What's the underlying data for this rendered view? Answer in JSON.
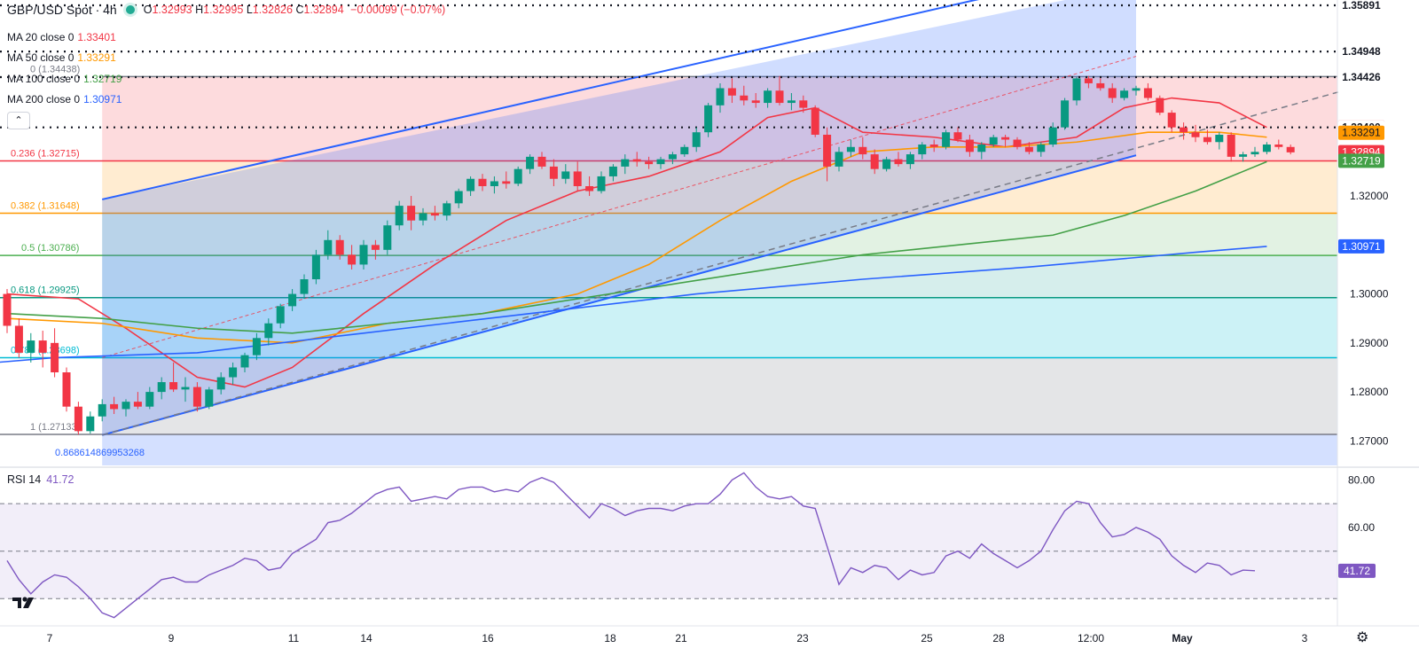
{
  "header": {
    "symbol": "GBP/USD Spot · 4h",
    "ohlc": {
      "o_label": "O",
      "o": "1.32993",
      "h_label": "H",
      "h": "1.32995",
      "l_label": "L",
      "l": "1.32826",
      "c_label": "C",
      "c": "1.32894",
      "change": "−0.00099 (−0.07%)"
    }
  },
  "legends": [
    {
      "label": "MA 20 close 0",
      "value": "1.33401",
      "color": "#f23645"
    },
    {
      "label": "MA 50 close 0",
      "value": "1.33291",
      "color": "#ff9800"
    },
    {
      "label": "MA 100 close 0",
      "value": "1.32719",
      "color": "#43a047"
    },
    {
      "label": "MA 200 close 0",
      "value": "1.30971",
      "color": "#2962ff"
    }
  ],
  "rsi": {
    "label": "RSI 14",
    "value": "41.72"
  },
  "chart_data": [
    {
      "type": "candlestick",
      "title": "GBP/USD Spot · 4h",
      "ylim": [
        1.265,
        1.36
      ],
      "y_ticks": [
        "1.27000",
        "1.28000",
        "1.29000",
        "1.30000",
        "1.32000"
      ],
      "x_ticks": [
        "7",
        "9",
        "11",
        "14",
        "16",
        "18",
        "21",
        "23",
        "25",
        "28",
        "12:00",
        "May",
        "3"
      ],
      "fib_levels": [
        {
          "label": "0 (1.34438)",
          "value": 1.34438
        },
        {
          "label": "0.236 (1.32715)",
          "value": 1.32715
        },
        {
          "label": "0.382 (1.31648)",
          "value": 1.31648
        },
        {
          "label": "0.5 (1.30786)",
          "value": 1.30786
        },
        {
          "label": "0.618 (1.29925)",
          "value": 1.29925
        },
        {
          "label": "0.786 (1.28698)",
          "value": 1.28698
        },
        {
          "label": "1 (1.27133)",
          "value": 1.27133
        }
      ],
      "fib_extra_label": "0.868614869953268",
      "horizontal_lines": [
        1.35891,
        1.34948,
        1.34426,
        1.334
      ],
      "price_labels": [
        {
          "text": "1.35891",
          "value": 1.35891,
          "bg": "#ffffff",
          "fg": "#131722"
        },
        {
          "text": "1.34948",
          "value": 1.34948,
          "bg": "#ffffff",
          "fg": "#131722"
        },
        {
          "text": "1.34426",
          "value": 1.34426,
          "bg": "#ffffff",
          "fg": "#131722"
        },
        {
          "text": "1.33401",
          "value": 1.33401,
          "bg": "#f23645",
          "fg": "#ffffff"
        },
        {
          "text": "1.33400",
          "value": 1.334,
          "bg": "#ffffff",
          "fg": "#131722"
        },
        {
          "text": "1.33291",
          "value": 1.33291,
          "bg": "#ff9800",
          "fg": "#131722"
        },
        {
          "text": "1.32894",
          "value": 1.32894,
          "bg": "#f23645",
          "fg": "#ffffff"
        },
        {
          "text": "1.32719",
          "value": 1.32719,
          "bg": "#43a047",
          "fg": "#ffffff"
        },
        {
          "text": "1.30971",
          "value": 1.30971,
          "bg": "#2962ff",
          "fg": "#ffffff"
        }
      ],
      "candles": [
        [
          1.3,
          1.301,
          1.292,
          1.2935
        ],
        [
          1.2935,
          1.295,
          1.287,
          1.288
        ],
        [
          1.288,
          1.292,
          1.286,
          1.2905
        ],
        [
          1.2905,
          1.2925,
          1.285,
          1.288
        ],
        [
          1.29,
          1.293,
          1.283,
          1.284
        ],
        [
          1.284,
          1.285,
          1.276,
          1.277
        ],
        [
          1.277,
          1.278,
          1.2713,
          1.272
        ],
        [
          1.272,
          1.276,
          1.2715,
          1.275
        ],
        [
          1.275,
          1.2785,
          1.274,
          1.2775
        ],
        [
          1.2775,
          1.279,
          1.2755,
          1.2765
        ],
        [
          1.2765,
          1.2785,
          1.275,
          1.278
        ],
        [
          1.278,
          1.28,
          1.2765,
          1.277
        ],
        [
          1.277,
          1.281,
          1.2765,
          1.28
        ],
        [
          1.28,
          1.283,
          1.2785,
          1.282
        ],
        [
          1.282,
          1.286,
          1.28,
          1.2805
        ],
        [
          1.2805,
          1.283,
          1.278,
          1.281
        ],
        [
          1.281,
          1.282,
          1.276,
          1.277
        ],
        [
          1.277,
          1.281,
          1.2765,
          1.2805
        ],
        [
          1.2805,
          1.284,
          1.2795,
          1.283
        ],
        [
          1.283,
          1.286,
          1.2815,
          1.285
        ],
        [
          1.285,
          1.288,
          1.284,
          1.2875
        ],
        [
          1.2875,
          1.292,
          1.2865,
          1.291
        ],
        [
          1.291,
          1.295,
          1.2895,
          1.294
        ],
        [
          1.294,
          1.298,
          1.293,
          1.2975
        ],
        [
          1.2975,
          1.301,
          1.2965,
          1.3
        ],
        [
          1.3,
          1.304,
          1.299,
          1.303
        ],
        [
          1.303,
          1.309,
          1.302,
          1.308
        ],
        [
          1.308,
          1.313,
          1.307,
          1.311
        ],
        [
          1.311,
          1.312,
          1.307,
          1.308
        ],
        [
          1.308,
          1.31,
          1.305,
          1.306
        ],
        [
          1.306,
          1.311,
          1.305,
          1.31
        ],
        [
          1.31,
          1.311,
          1.307,
          1.309
        ],
        [
          1.309,
          1.315,
          1.308,
          1.314
        ],
        [
          1.314,
          1.319,
          1.313,
          1.318
        ],
        [
          1.318,
          1.32,
          1.313,
          1.315
        ],
        [
          1.315,
          1.3175,
          1.314,
          1.3165
        ],
        [
          1.3165,
          1.318,
          1.315,
          1.316
        ],
        [
          1.316,
          1.319,
          1.315,
          1.3185
        ],
        [
          1.3185,
          1.3215,
          1.3175,
          1.321
        ],
        [
          1.321,
          1.324,
          1.32,
          1.3235
        ],
        [
          1.3235,
          1.3245,
          1.321,
          1.322
        ],
        [
          1.322,
          1.324,
          1.3205,
          1.323
        ],
        [
          1.323,
          1.325,
          1.3215,
          1.3225
        ],
        [
          1.3225,
          1.326,
          1.322,
          1.3255
        ],
        [
          1.3255,
          1.3285,
          1.3245,
          1.328
        ],
        [
          1.328,
          1.329,
          1.3255,
          1.326
        ],
        [
          1.326,
          1.3275,
          1.322,
          1.3235
        ],
        [
          1.3235,
          1.3265,
          1.3225,
          1.325
        ],
        [
          1.325,
          1.327,
          1.321,
          1.322
        ],
        [
          1.322,
          1.324,
          1.32,
          1.321
        ],
        [
          1.321,
          1.325,
          1.3205,
          1.324
        ],
        [
          1.324,
          1.3265,
          1.323,
          1.326
        ],
        [
          1.326,
          1.3285,
          1.3245,
          1.3275
        ],
        [
          1.3275,
          1.329,
          1.326,
          1.327
        ],
        [
          1.327,
          1.328,
          1.3255,
          1.3265
        ],
        [
          1.3265,
          1.328,
          1.3255,
          1.3275
        ],
        [
          1.3275,
          1.329,
          1.3265,
          1.3285
        ],
        [
          1.3285,
          1.3305,
          1.328,
          1.33
        ],
        [
          1.33,
          1.334,
          1.329,
          1.333
        ],
        [
          1.333,
          1.339,
          1.332,
          1.3385
        ],
        [
          1.3385,
          1.343,
          1.337,
          1.342
        ],
        [
          1.342,
          1.344,
          1.339,
          1.3405
        ],
        [
          1.3405,
          1.3425,
          1.3385,
          1.3395
        ],
        [
          1.3395,
          1.341,
          1.338,
          1.339
        ],
        [
          1.339,
          1.342,
          1.338,
          1.3415
        ],
        [
          1.3415,
          1.3445,
          1.3385,
          1.339
        ],
        [
          1.339,
          1.341,
          1.3375,
          1.3395
        ],
        [
          1.3395,
          1.3405,
          1.337,
          1.338
        ],
        [
          1.338,
          1.3385,
          1.332,
          1.3325
        ],
        [
          1.3325,
          1.334,
          1.323,
          1.326
        ],
        [
          1.326,
          1.33,
          1.325,
          1.329
        ],
        [
          1.329,
          1.3315,
          1.328,
          1.33
        ],
        [
          1.33,
          1.332,
          1.3275,
          1.3285
        ],
        [
          1.3285,
          1.3295,
          1.3245,
          1.3255
        ],
        [
          1.3255,
          1.328,
          1.325,
          1.3275
        ],
        [
          1.3275,
          1.329,
          1.326,
          1.3265
        ],
        [
          1.3265,
          1.329,
          1.3255,
          1.3285
        ],
        [
          1.3285,
          1.331,
          1.3275,
          1.3305
        ],
        [
          1.3305,
          1.3315,
          1.329,
          1.33
        ],
        [
          1.33,
          1.3335,
          1.3295,
          1.333
        ],
        [
          1.333,
          1.334,
          1.331,
          1.3315
        ],
        [
          1.3315,
          1.3325,
          1.328,
          1.329
        ],
        [
          1.329,
          1.331,
          1.3275,
          1.3305
        ],
        [
          1.3305,
          1.3325,
          1.33,
          1.332
        ],
        [
          1.332,
          1.3325,
          1.33,
          1.3315
        ],
        [
          1.3315,
          1.332,
          1.3295,
          1.33
        ],
        [
          1.33,
          1.331,
          1.3285,
          1.329
        ],
        [
          1.329,
          1.331,
          1.328,
          1.3305
        ],
        [
          1.3305,
          1.335,
          1.33,
          1.334
        ],
        [
          1.334,
          1.34,
          1.3335,
          1.3395
        ],
        [
          1.3395,
          1.3443,
          1.3385,
          1.344
        ],
        [
          1.344,
          1.3445,
          1.342,
          1.343
        ],
        [
          1.343,
          1.344,
          1.3415,
          1.342
        ],
        [
          1.342,
          1.343,
          1.339,
          1.34
        ],
        [
          1.34,
          1.342,
          1.3395,
          1.3415
        ],
        [
          1.3415,
          1.3425,
          1.3405,
          1.342
        ],
        [
          1.342,
          1.343,
          1.3395,
          1.34
        ],
        [
          1.34,
          1.3405,
          1.3365,
          1.337
        ],
        [
          1.337,
          1.3375,
          1.333,
          1.334
        ],
        [
          1.334,
          1.335,
          1.3315,
          1.333
        ],
        [
          1.333,
          1.3345,
          1.331,
          1.332
        ],
        [
          1.332,
          1.3335,
          1.3305,
          1.331
        ],
        [
          1.331,
          1.333,
          1.3295,
          1.3325
        ],
        [
          1.3325,
          1.333,
          1.327,
          1.328
        ],
        [
          1.328,
          1.329,
          1.327,
          1.3285
        ],
        [
          1.3285,
          1.33,
          1.328,
          1.329
        ],
        [
          1.329,
          1.331,
          1.3285,
          1.3305
        ],
        [
          1.3305,
          1.3315,
          1.3295,
          1.33
        ],
        [
          1.33,
          1.3305,
          1.3285,
          1.3289
        ]
      ],
      "ma_lines": [
        {
          "name": "MA 20",
          "color": "#f23645",
          "points": [
            [
              0,
              1.3
            ],
            [
              6,
              1.299
            ],
            [
              10,
              1.293
            ],
            [
              16,
              1.283
            ],
            [
              20,
              1.281
            ],
            [
              24,
              1.285
            ],
            [
              30,
              1.296
            ],
            [
              36,
              1.306
            ],
            [
              42,
              1.315
            ],
            [
              48,
              1.321
            ],
            [
              54,
              1.324
            ],
            [
              60,
              1.329
            ],
            [
              64,
              1.336
            ],
            [
              68,
              1.338
            ],
            [
              72,
              1.333
            ],
            [
              78,
              1.332
            ],
            [
              84,
              1.33
            ],
            [
              90,
              1.332
            ],
            [
              94,
              1.338
            ],
            [
              98,
              1.34
            ],
            [
              102,
              1.339
            ],
            [
              106,
              1.334
            ]
          ]
        },
        {
          "name": "MA 50",
          "color": "#ff9800",
          "points": [
            [
              0,
              1.295
            ],
            [
              8,
              1.294
            ],
            [
              16,
              1.291
            ],
            [
              24,
              1.29
            ],
            [
              32,
              1.294
            ],
            [
              40,
              1.296
            ],
            [
              48,
              1.3
            ],
            [
              54,
              1.306
            ],
            [
              60,
              1.315
            ],
            [
              66,
              1.323
            ],
            [
              72,
              1.329
            ],
            [
              78,
              1.33
            ],
            [
              84,
              1.33
            ],
            [
              90,
              1.331
            ],
            [
              96,
              1.333
            ],
            [
              102,
              1.333
            ],
            [
              106,
              1.332
            ]
          ]
        },
        {
          "name": "MA 100",
          "color": "#43a047",
          "points": [
            [
              0,
              1.296
            ],
            [
              8,
              1.295
            ],
            [
              16,
              1.293
            ],
            [
              24,
              1.292
            ],
            [
              32,
              1.294
            ],
            [
              40,
              1.296
            ],
            [
              48,
              1.299
            ],
            [
              56,
              1.302
            ],
            [
              64,
              1.305
            ],
            [
              72,
              1.308
            ],
            [
              80,
              1.31
            ],
            [
              88,
              1.312
            ],
            [
              94,
              1.316
            ],
            [
              100,
              1.321
            ],
            [
              106,
              1.327
            ]
          ]
        },
        {
          "name": "MA 200",
          "color": "#2962ff",
          "points": [
            [
              -1,
              1.286
            ],
            [
              4,
              1.287
            ],
            [
              16,
              1.288
            ],
            [
              30,
              1.292
            ],
            [
              44,
              1.296
            ],
            [
              58,
              1.3
            ],
            [
              72,
              1.303
            ],
            [
              86,
              1.3055
            ],
            [
              100,
              1.3085
            ],
            [
              106,
              1.3097
            ]
          ]
        }
      ]
    },
    {
      "type": "line",
      "title": "RSI 14",
      "ylim": [
        20,
        85
      ],
      "y_ticks": [
        "80.00",
        "60.00"
      ],
      "levels": [
        70,
        50,
        30
      ],
      "series": [
        {
          "name": "RSI 14",
          "color": "#7e57c2",
          "values": [
            46,
            38,
            32,
            37,
            40,
            39,
            35,
            30,
            24,
            22,
            26,
            30,
            34,
            38,
            39,
            37,
            37,
            40,
            42,
            44,
            47,
            46,
            42,
            43,
            49,
            52,
            55,
            62,
            63,
            66,
            70,
            74,
            76,
            77,
            71,
            72,
            73,
            72,
            76,
            77,
            77,
            75,
            76,
            75,
            79,
            81,
            79,
            74,
            69,
            64,
            70,
            68,
            65,
            67,
            68,
            68,
            67,
            69,
            70,
            70,
            74,
            80,
            83,
            77,
            73,
            72,
            73,
            69,
            68,
            52,
            36,
            43,
            41,
            44,
            43,
            38,
            42,
            40,
            41,
            48,
            50,
            47,
            53,
            49,
            46,
            43,
            46,
            50,
            59,
            67,
            71,
            70,
            62,
            56,
            57,
            60,
            58,
            55,
            48,
            44,
            41,
            45,
            44,
            40,
            42,
            41.72
          ]
        }
      ],
      "last_label": "41.72"
    }
  ]
}
